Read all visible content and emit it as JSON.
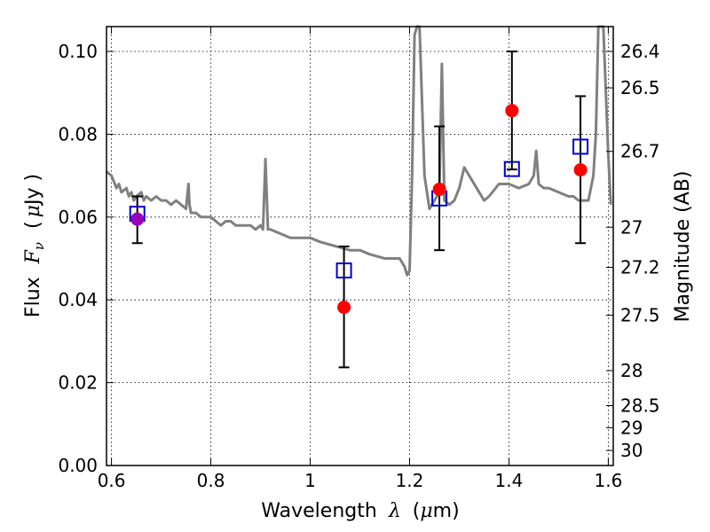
{
  "chart_data": {
    "type": "scatter",
    "title": "",
    "xlabel": {
      "prefix": "Wavelength",
      "symbol": "λ",
      "unit_open": "(",
      "unit_sym": "μ",
      "unit_rest": "m)"
    },
    "ylabel": {
      "prefix": "Flux",
      "symbol": "F",
      "subscript": "ν",
      "unit_open": "(",
      "unit_sym": "μ",
      "unit_rest": "Jy )"
    },
    "y2label": "Magnitude (AB)",
    "xlim": [
      0.59,
      1.61
    ],
    "ylim": [
      0.0,
      0.106
    ],
    "x_ticks": [
      {
        "value": 0.6,
        "label": "0.6"
      },
      {
        "value": 0.8,
        "label": "0.8"
      },
      {
        "value": 1.0,
        "label": "1"
      },
      {
        "value": 1.2,
        "label": "1.2"
      },
      {
        "value": 1.4,
        "label": "1.4"
      },
      {
        "value": 1.6,
        "label": "1.6"
      }
    ],
    "y_ticks": [
      {
        "value": 0.0,
        "label": "0.00"
      },
      {
        "value": 0.02,
        "label": "0.02"
      },
      {
        "value": 0.04,
        "label": "0.04"
      },
      {
        "value": 0.06,
        "label": "0.06"
      },
      {
        "value": 0.08,
        "label": "0.08"
      },
      {
        "value": 0.1,
        "label": "0.10"
      }
    ],
    "y2_ticks": [
      {
        "value": 26.4,
        "label": "26.4"
      },
      {
        "value": 26.5,
        "label": "26.5"
      },
      {
        "value": 26.7,
        "label": "26.7"
      },
      {
        "value": 27.0,
        "label": "27"
      },
      {
        "value": 27.2,
        "label": "27.2"
      },
      {
        "value": 27.5,
        "label": "27.5"
      },
      {
        "value": 28.0,
        "label": "28"
      },
      {
        "value": 28.5,
        "label": "28.5"
      },
      {
        "value": 29.0,
        "label": "29"
      },
      {
        "value": 30.0,
        "label": "30"
      }
    ],
    "grid": true,
    "colors": {
      "model": "#808080",
      "observed": "#ff0000",
      "observed_first": "#9900bb",
      "model_band": "#0000cc",
      "errorbar": "#000000"
    },
    "series": [
      {
        "kind": "line",
        "x": [
          0.59,
          0.6,
          0.61,
          0.615,
          0.62,
          0.63,
          0.635,
          0.64,
          0.645,
          0.65,
          0.66,
          0.665,
          0.67,
          0.68,
          0.69,
          0.7,
          0.71,
          0.72,
          0.73,
          0.74,
          0.75,
          0.755,
          0.757,
          0.76,
          0.77,
          0.78,
          0.79,
          0.8,
          0.81,
          0.82,
          0.83,
          0.84,
          0.85,
          0.86,
          0.87,
          0.88,
          0.89,
          0.9,
          0.905,
          0.91,
          0.915,
          0.92,
          0.94,
          0.96,
          0.98,
          1.0,
          1.02,
          1.05,
          1.08,
          1.1,
          1.12,
          1.15,
          1.18,
          1.19,
          1.195,
          1.2,
          1.205,
          1.21,
          1.215,
          1.22,
          1.23,
          1.24,
          1.25,
          1.26,
          1.265,
          1.27,
          1.28,
          1.29,
          1.3,
          1.31,
          1.32,
          1.33,
          1.34,
          1.35,
          1.36,
          1.38,
          1.4,
          1.42,
          1.44,
          1.45,
          1.455,
          1.46,
          1.47,
          1.48,
          1.5,
          1.52,
          1.53,
          1.54,
          1.55,
          1.56,
          1.57,
          1.575,
          1.58,
          1.59,
          1.6,
          1.605
        ],
        "y": [
          0.071,
          0.07,
          0.067,
          0.068,
          0.066,
          0.067,
          0.065,
          0.066,
          0.064,
          0.065,
          0.066,
          0.064,
          0.065,
          0.064,
          0.065,
          0.064,
          0.064,
          0.063,
          0.064,
          0.063,
          0.062,
          0.068,
          0.063,
          0.061,
          0.061,
          0.06,
          0.06,
          0.06,
          0.059,
          0.058,
          0.059,
          0.059,
          0.058,
          0.058,
          0.058,
          0.058,
          0.057,
          0.058,
          0.057,
          0.074,
          0.057,
          0.057,
          0.056,
          0.055,
          0.055,
          0.055,
          0.054,
          0.053,
          0.052,
          0.052,
          0.051,
          0.05,
          0.05,
          0.048,
          0.046,
          0.047,
          0.07,
          0.104,
          0.106,
          0.106,
          0.07,
          0.062,
          0.064,
          0.066,
          0.097,
          0.064,
          0.063,
          0.064,
          0.067,
          0.072,
          0.07,
          0.068,
          0.066,
          0.064,
          0.065,
          0.068,
          0.068,
          0.067,
          0.068,
          0.07,
          0.076,
          0.068,
          0.067,
          0.067,
          0.066,
          0.065,
          0.065,
          0.064,
          0.064,
          0.064,
          0.07,
          0.08,
          0.106,
          0.106,
          0.075,
          0.063
        ]
      },
      {
        "kind": "errorbar",
        "x": [
          0.652,
          1.068,
          1.26,
          1.406,
          1.544
        ],
        "y": [
          0.0595,
          0.0382,
          0.0667,
          0.0857,
          0.0714
        ],
        "yerr_low": [
          0.0058,
          0.0145,
          0.0147,
          0.0142,
          0.0177
        ],
        "yerr_high": [
          0.0055,
          0.0147,
          0.0152,
          0.0143,
          0.0178
        ]
      },
      {
        "kind": "squares",
        "x": [
          0.652,
          1.068,
          1.26,
          1.406,
          1.544
        ],
        "y": [
          0.0608,
          0.0471,
          0.0645,
          0.0716,
          0.077
        ]
      }
    ]
  }
}
